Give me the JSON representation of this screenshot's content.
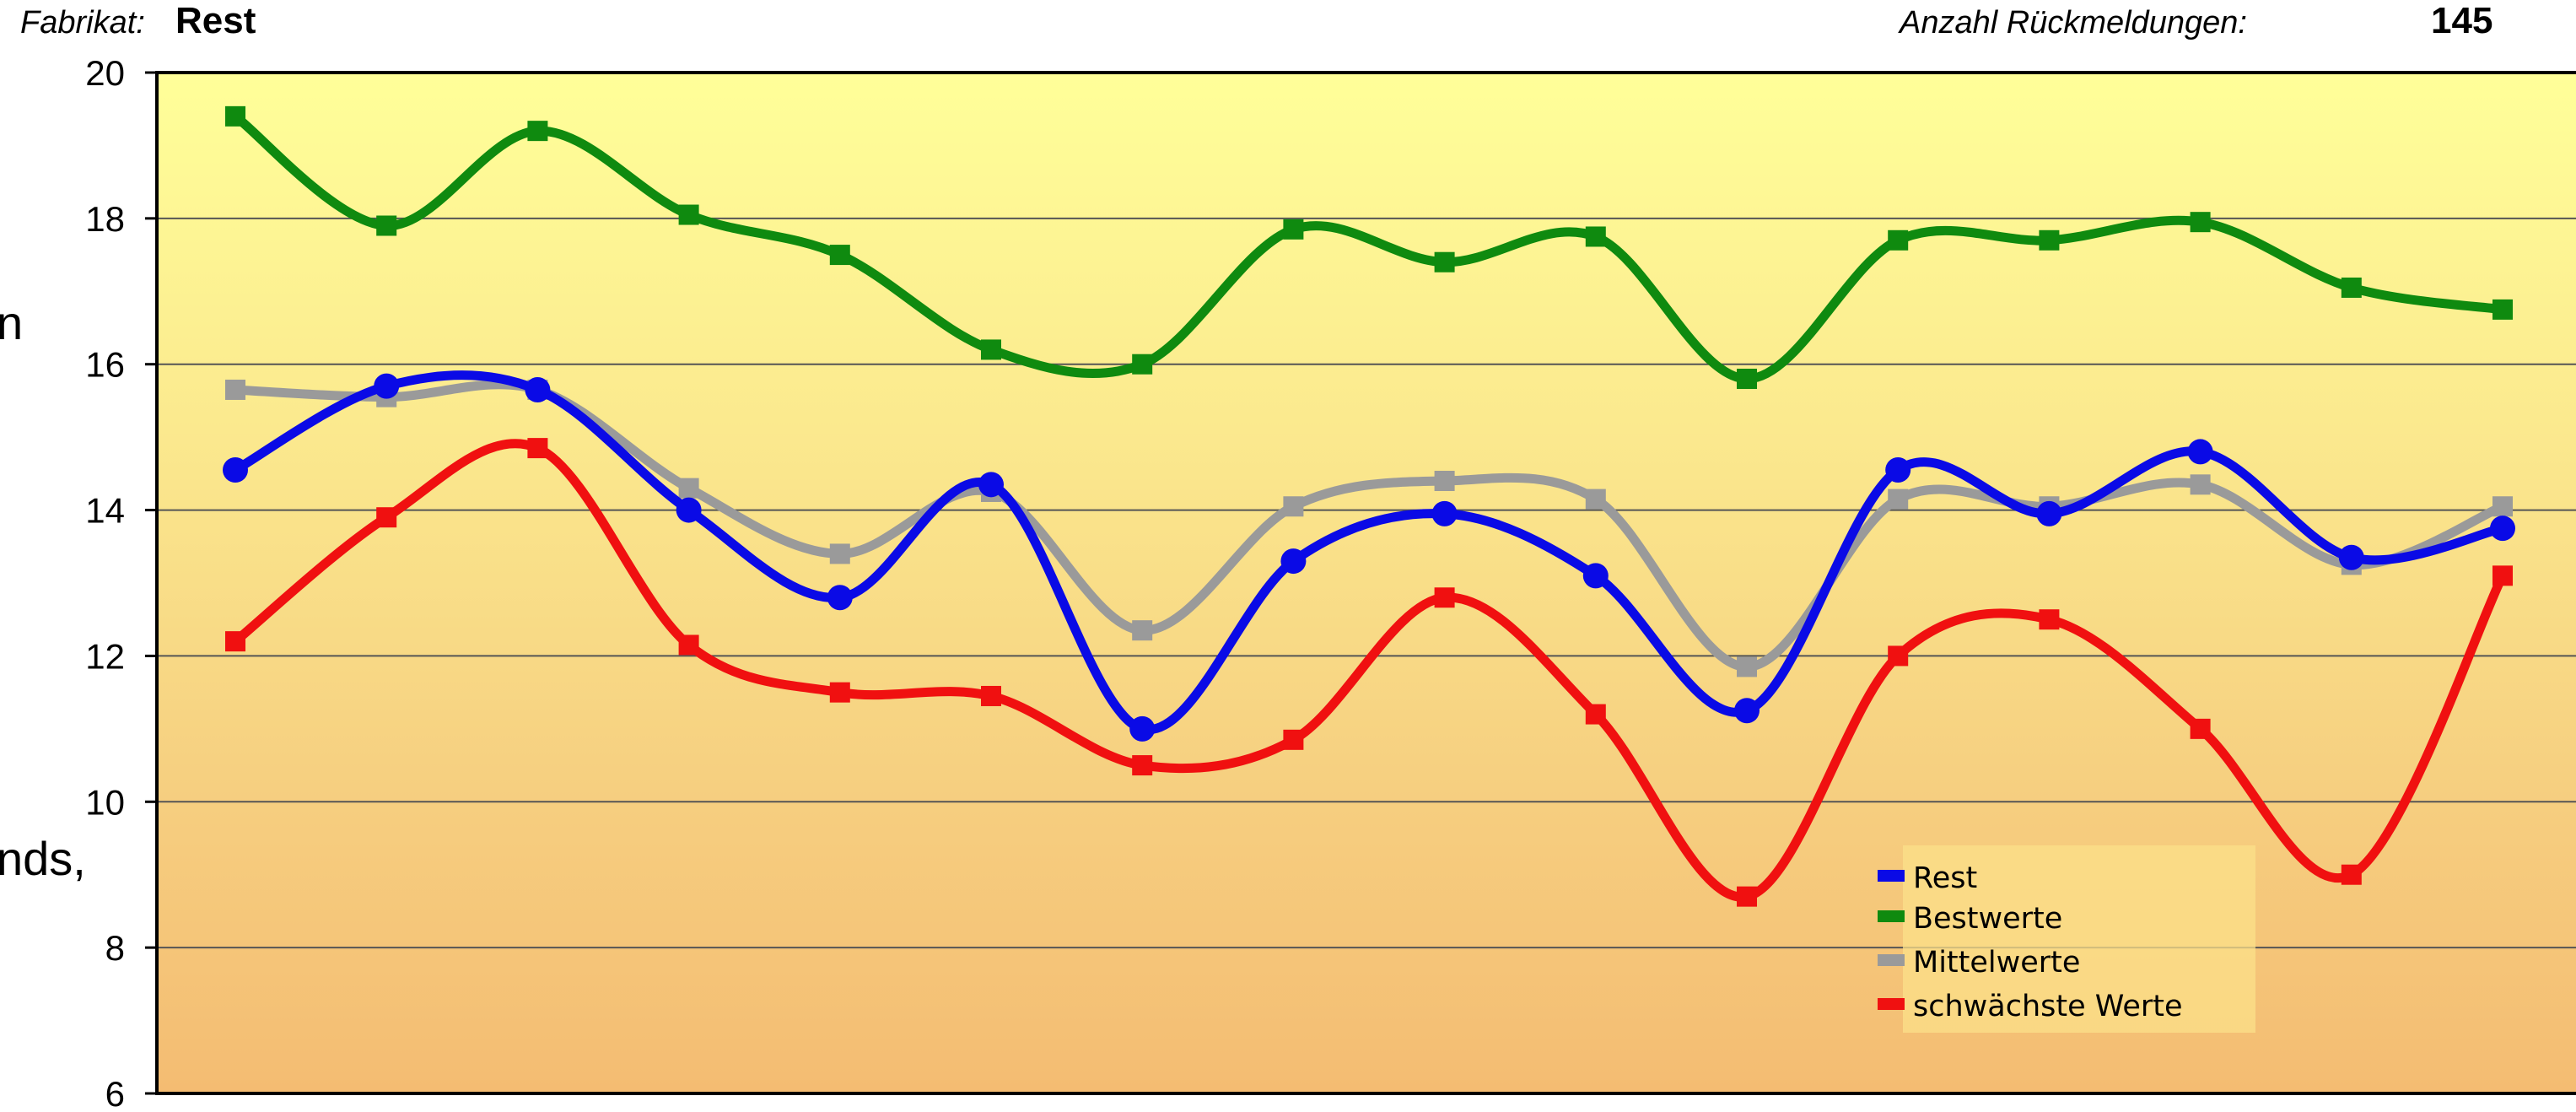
{
  "header": {
    "fabrikat_label": "Fabrikat:",
    "fabrikat_value": "Rest",
    "count_label": "Anzahl Rückmeldungen:",
    "count_value": "145"
  },
  "side_fragments": [
    "n",
    "nds,"
  ],
  "chart_data": {
    "type": "line",
    "smooth": true,
    "title": "",
    "xlabel": "",
    "ylabel": "",
    "ylim": [
      6,
      20
    ],
    "yticks": [
      6,
      8,
      10,
      12,
      14,
      16,
      18,
      20
    ],
    "grid": "horizontal",
    "background": "vertical gradient yellow to orange",
    "legend_position": "bottom-right",
    "x": [
      1,
      2,
      3,
      4,
      5,
      6,
      7,
      8,
      9,
      10,
      11,
      12,
      13,
      14,
      15,
      16
    ],
    "series": [
      {
        "name": "Rest",
        "color": "#0a0ae6",
        "marker": "circle",
        "values": [
          14.55,
          15.7,
          15.65,
          14.0,
          12.8,
          14.35,
          11.0,
          13.3,
          13.95,
          13.1,
          11.25,
          14.55,
          13.95,
          14.8,
          13.35,
          13.75
        ]
      },
      {
        "name": "Bestwerte",
        "color": "#0f8a0f",
        "marker": "square",
        "values": [
          19.4,
          17.9,
          19.2,
          18.05,
          17.5,
          16.2,
          16.0,
          17.85,
          17.4,
          17.75,
          15.8,
          17.7,
          17.7,
          17.95,
          17.05,
          16.75
        ]
      },
      {
        "name": "Mittelwerte",
        "color": "#9a9a9a",
        "marker": "square",
        "values": [
          15.65,
          15.55,
          15.65,
          14.3,
          13.4,
          14.25,
          12.35,
          14.05,
          14.4,
          14.15,
          11.85,
          14.15,
          14.05,
          14.35,
          13.25,
          14.05
        ]
      },
      {
        "name": "schwächste Werte",
        "color": "#f01010",
        "marker": "square",
        "values": [
          12.2,
          13.9,
          14.85,
          12.15,
          11.5,
          11.45,
          10.5,
          10.85,
          12.8,
          11.2,
          8.7,
          12.0,
          12.5,
          11.0,
          9.0,
          13.1
        ]
      }
    ]
  }
}
